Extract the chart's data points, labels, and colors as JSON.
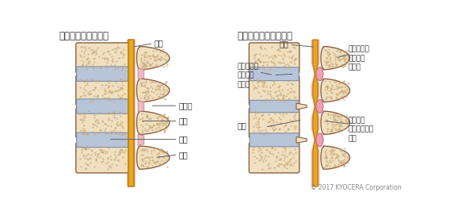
{
  "title_left": "正常な脊椎の断面図",
  "title_right": "脊柱管狭窄症の断面図",
  "copyright": "© 2017 KYOCERA Corporation",
  "bg_color": "#ffffff",
  "bone_fill": "#f0e0c0",
  "bone_edge": "#8b6040",
  "bone_stipple": "#c8a878",
  "disc_blue": "#b8c4d8",
  "disc_blue_edge": "#7890a8",
  "cord_yellow": "#e8a820",
  "cord_yellow_edge": "#c08010",
  "canal_pink": "#f0b8b8",
  "canal_pink_edge": "#d08888",
  "lig_pink": "#f0b8c0",
  "lig_pink_edge": "#c08890",
  "text_color": "#333333",
  "line_color": "#606060",
  "title_fontsize": 8.5,
  "label_fontsize": 7.0,
  "small_label_fontsize": 6.5
}
